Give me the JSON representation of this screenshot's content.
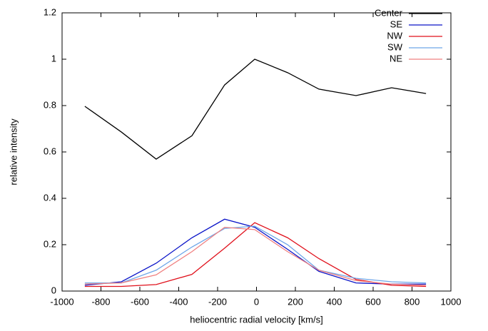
{
  "chart_data": {
    "type": "line",
    "x": [
      -883,
      -695,
      -516,
      -332,
      -164,
      -9,
      160,
      321,
      512,
      695,
      872
    ],
    "series": [
      {
        "name": "Center",
        "color": "#000000",
        "values": [
          0.797,
          0.686,
          0.569,
          0.67,
          0.889,
          1.0,
          0.942,
          0.871,
          0.843,
          0.877,
          0.852
        ]
      },
      {
        "name": "SE",
        "color": "#0a14c8",
        "values": [
          0.025,
          0.04,
          0.12,
          0.23,
          0.31,
          0.275,
          0.18,
          0.085,
          0.035,
          0.03,
          0.03
        ]
      },
      {
        "name": "NW",
        "color": "#e0101b",
        "values": [
          0.02,
          0.02,
          0.028,
          0.072,
          0.185,
          0.295,
          0.23,
          0.14,
          0.05,
          0.025,
          0.02
        ]
      },
      {
        "name": "SW",
        "color": "#6ea6e8",
        "values": [
          0.035,
          0.035,
          0.09,
          0.19,
          0.27,
          0.28,
          0.2,
          0.09,
          0.055,
          0.04,
          0.035
        ]
      },
      {
        "name": "NE",
        "color": "#f08080",
        "values": [
          0.03,
          0.035,
          0.07,
          0.17,
          0.275,
          0.265,
          0.17,
          0.09,
          0.045,
          0.03,
          0.025
        ]
      }
    ],
    "x_label": "heliocentric radial velocity [km/s]",
    "y_label": "relative intensity",
    "xlim": [
      -1000,
      1000
    ],
    "xticks": [
      -1000,
      -800,
      -600,
      -400,
      -200,
      0,
      200,
      400,
      600,
      800,
      1000
    ],
    "ylim": [
      0,
      1.2
    ],
    "yticks": [
      0,
      0.2,
      0.4,
      0.6,
      0.8,
      1,
      1.2
    ],
    "legend": "top-right"
  }
}
